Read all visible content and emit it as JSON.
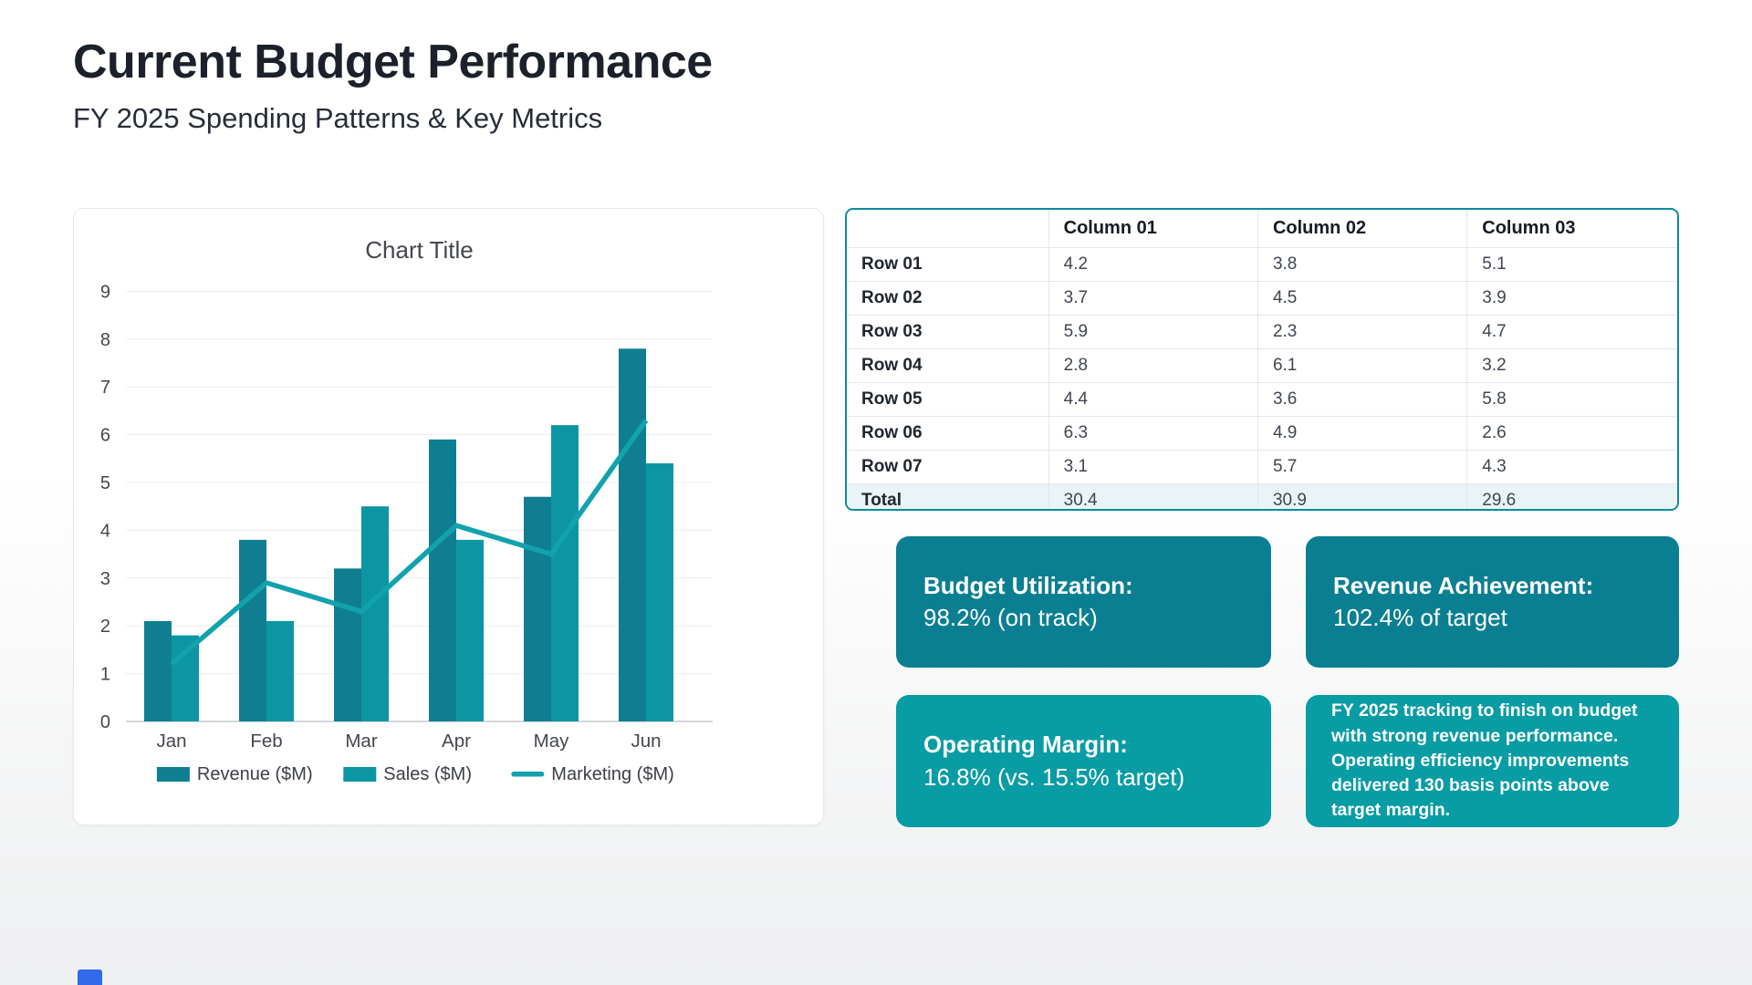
{
  "page": {
    "title": "Current Budget Performance",
    "subtitle": "FY 2025 Spending Patterns & Key Metrics"
  },
  "colors": {
    "revenue_bar": "#0f7e91",
    "sales_bar": "#0c96a3",
    "marketing_line": "#12a2ad",
    "table_border": "#0e8a9b",
    "total_row_bg": "#eaf4f7",
    "card_top_bg": "#0b7f92",
    "card_bottom_bg": "#089ca4",
    "accent_blue": "#2f6bea"
  },
  "chart_data": {
    "type": "bar",
    "title": "Chart Title",
    "categories": [
      "Jan",
      "Feb",
      "Mar",
      "Apr",
      "May",
      "Jun"
    ],
    "series": [
      {
        "name": "Revenue ($M)",
        "type": "bar",
        "color": "#0f7e91",
        "values": [
          2.1,
          3.8,
          3.2,
          5.9,
          4.7,
          7.8
        ]
      },
      {
        "name": "Sales ($M)",
        "type": "bar",
        "color": "#0c96a3",
        "values": [
          1.8,
          2.1,
          4.5,
          3.8,
          6.2,
          5.4
        ]
      },
      {
        "name": "Marketing ($M)",
        "type": "line",
        "color": "#12a2ad",
        "values": [
          1.2,
          2.9,
          2.3,
          4.1,
          3.5,
          6.3
        ]
      }
    ],
    "ylim": [
      0,
      9
    ],
    "ytick_step": 1,
    "grid": true,
    "legend_position": "bottom"
  },
  "table": {
    "headers": [
      "",
      "Column 01",
      "Column 02",
      "Column 03"
    ],
    "rows": [
      {
        "label": "Row 01",
        "values": [
          "4.2",
          "3.8",
          "5.1"
        ]
      },
      {
        "label": "Row 02",
        "values": [
          "3.7",
          "4.5",
          "3.9"
        ]
      },
      {
        "label": "Row 03",
        "values": [
          "5.9",
          "2.3",
          "4.7"
        ]
      },
      {
        "label": "Row 04",
        "values": [
          "2.8",
          "6.1",
          "3.2"
        ]
      },
      {
        "label": "Row 05",
        "values": [
          "4.4",
          "3.6",
          "5.8"
        ]
      },
      {
        "label": "Row 06",
        "values": [
          "6.3",
          "4.9",
          "2.6"
        ]
      },
      {
        "label": "Row 07",
        "values": [
          "3.1",
          "5.7",
          "4.3"
        ]
      }
    ],
    "total": {
      "label": "Total",
      "values": [
        "30.4",
        "30.9",
        "29.6"
      ]
    }
  },
  "metrics": [
    {
      "label": "Budget Utilization:",
      "value": "98.2% (on track)"
    },
    {
      "label": "Revenue Achievement:",
      "value": "102.4% of target"
    },
    {
      "label": "Operating Margin:",
      "value": "16.8% (vs. 15.5% target)"
    }
  ],
  "summary": {
    "text": "FY 2025 tracking to finish on budget with strong revenue performance. Operating efficiency improvements delivered 130 basis points above target margin."
  }
}
